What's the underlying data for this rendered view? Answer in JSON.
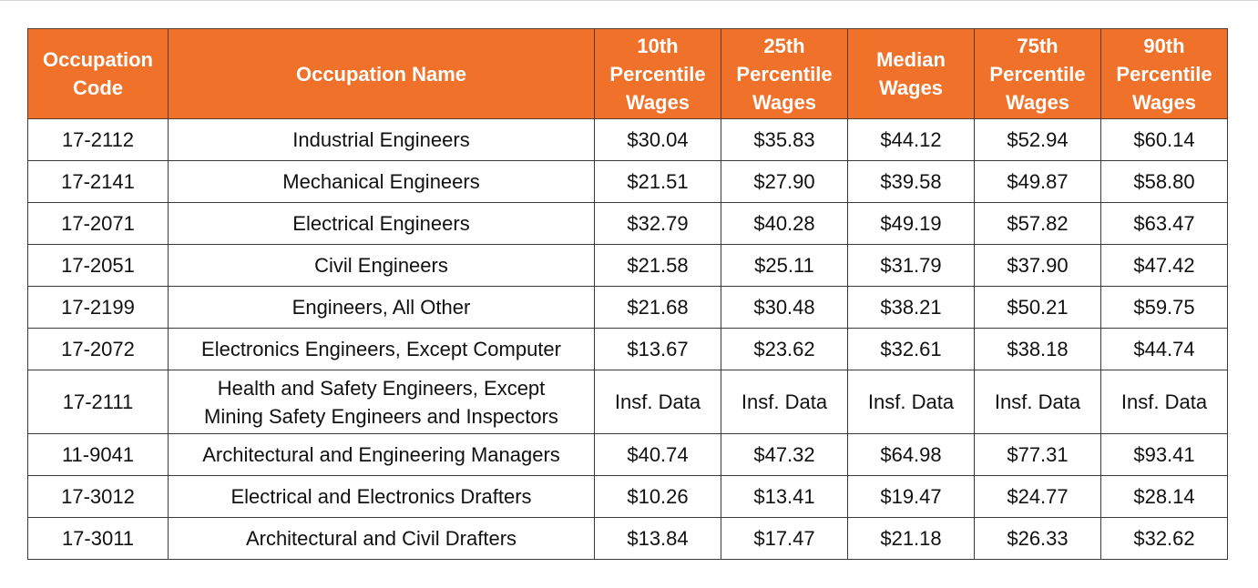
{
  "table": {
    "headers": [
      "Occupation Code",
      "Occupation Name",
      "10th Percentile Wages",
      "25th Percentile Wages",
      "Median Wages",
      "75th Percentile Wages",
      "90th Percentile Wages"
    ],
    "header_lines": [
      [
        "Occupation",
        "Code"
      ],
      [
        "Occupation Name"
      ],
      [
        "10th",
        "Percentile",
        "Wages"
      ],
      [
        "25th",
        "Percentile",
        "Wages"
      ],
      [
        "Median",
        "Wages"
      ],
      [
        "75th",
        "Percentile",
        "Wages"
      ],
      [
        "90th",
        "Percentile",
        "Wages"
      ]
    ],
    "header_color": "#f07129",
    "rows": [
      {
        "code": "17-2112",
        "name": [
          "Industrial Engineers"
        ],
        "p10": "$30.04",
        "p25": "$35.83",
        "median": "$44.12",
        "p75": "$52.94",
        "p90": "$60.14"
      },
      {
        "code": "17-2141",
        "name": [
          "Mechanical Engineers"
        ],
        "p10": "$21.51",
        "p25": "$27.90",
        "median": "$39.58",
        "p75": "$49.87",
        "p90": "$58.80"
      },
      {
        "code": "17-2071",
        "name": [
          "Electrical Engineers"
        ],
        "p10": "$32.79",
        "p25": "$40.28",
        "median": "$49.19",
        "p75": "$57.82",
        "p90": "$63.47"
      },
      {
        "code": "17-2051",
        "name": [
          "Civil Engineers"
        ],
        "p10": "$21.58",
        "p25": "$25.11",
        "median": "$31.79",
        "p75": "$37.90",
        "p90": "$47.42"
      },
      {
        "code": "17-2199",
        "name": [
          "Engineers, All Other"
        ],
        "p10": "$21.68",
        "p25": "$30.48",
        "median": "$38.21",
        "p75": "$50.21",
        "p90": "$59.75"
      },
      {
        "code": "17-2072",
        "name": [
          "Electronics Engineers, Except Computer"
        ],
        "p10": "$13.67",
        "p25": "$23.62",
        "median": "$32.61",
        "p75": "$38.18",
        "p90": "$44.74"
      },
      {
        "code": "17-2111",
        "name": [
          "Health and Safety Engineers, Except",
          "Mining Safety Engineers and Inspectors"
        ],
        "p10": "Insf. Data",
        "p25": "Insf. Data",
        "median": "Insf. Data",
        "p75": "Insf. Data",
        "p90": "Insf. Data"
      },
      {
        "code": "11-9041",
        "name": [
          "Architectural and Engineering Managers"
        ],
        "p10": "$40.74",
        "p25": "$47.32",
        "median": "$64.98",
        "p75": "$77.31",
        "p90": "$93.41"
      },
      {
        "code": "17-3012",
        "name": [
          "Electrical and Electronics Drafters"
        ],
        "p10": "$10.26",
        "p25": "$13.41",
        "median": "$19.47",
        "p75": "$24.77",
        "p90": "$28.14"
      },
      {
        "code": "17-3011",
        "name": [
          "Architectural and Civil Drafters"
        ],
        "p10": "$13.84",
        "p25": "$17.47",
        "median": "$21.18",
        "p75": "$26.33",
        "p90": "$32.62"
      }
    ]
  }
}
